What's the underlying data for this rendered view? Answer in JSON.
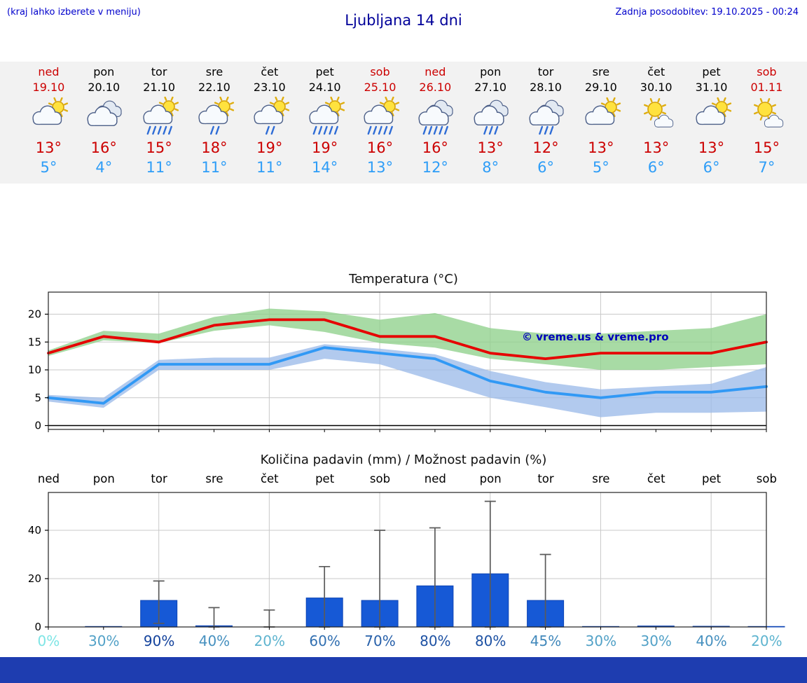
{
  "header": {
    "hint": "(kraj lahko izberete v meniju)",
    "title": "Ljubljana 14 dni",
    "updated": "Zadnja posodobitev: 19.10.2025 - 00:24"
  },
  "watermark": "© vreme.us & vreme.pro",
  "colors": {
    "link_blue": "#0000cc",
    "title_blue": "#000099",
    "weekend_red": "#cc0000",
    "tmax_red": "#cc0000",
    "tmin_blue": "#2e9df7",
    "strip_bg": "#f2f2f2",
    "footer_bg": "#1e3db0"
  },
  "days": [
    {
      "name": "ned",
      "date": "19.10",
      "weekend": true,
      "icon": "partly-cloudy",
      "tmax": "13°",
      "tmin": "5°"
    },
    {
      "name": "pon",
      "date": "20.10",
      "weekend": false,
      "icon": "cloudy",
      "tmax": "16°",
      "tmin": "4°"
    },
    {
      "name": "tor",
      "date": "21.10",
      "weekend": false,
      "icon": "partly-heavy-rain",
      "tmax": "15°",
      "tmin": "11°"
    },
    {
      "name": "sre",
      "date": "22.10",
      "weekend": false,
      "icon": "partly-rain",
      "tmax": "18°",
      "tmin": "11°"
    },
    {
      "name": "čet",
      "date": "23.10",
      "weekend": false,
      "icon": "partly-rain",
      "tmax": "19°",
      "tmin": "11°"
    },
    {
      "name": "pet",
      "date": "24.10",
      "weekend": false,
      "icon": "partly-heavy-rain",
      "tmax": "19°",
      "tmin": "14°"
    },
    {
      "name": "sob",
      "date": "25.10",
      "weekend": true,
      "icon": "partly-heavy-rain",
      "tmax": "16°",
      "tmin": "13°"
    },
    {
      "name": "ned",
      "date": "26.10",
      "weekend": true,
      "icon": "cloudy-heavy-rain",
      "tmax": "16°",
      "tmin": "12°"
    },
    {
      "name": "pon",
      "date": "27.10",
      "weekend": false,
      "icon": "cloudy-rain",
      "tmax": "13°",
      "tmin": "8°"
    },
    {
      "name": "tor",
      "date": "28.10",
      "weekend": false,
      "icon": "cloudy-rain",
      "tmax": "12°",
      "tmin": "6°"
    },
    {
      "name": "sre",
      "date": "29.10",
      "weekend": false,
      "icon": "partly-cloudy",
      "tmax": "13°",
      "tmin": "5°"
    },
    {
      "name": "čet",
      "date": "30.10",
      "weekend": false,
      "icon": "mostly-sunny",
      "tmax": "13°",
      "tmin": "6°"
    },
    {
      "name": "pet",
      "date": "31.10",
      "weekend": false,
      "icon": "partly-cloudy",
      "tmax": "13°",
      "tmin": "6°"
    },
    {
      "name": "sob",
      "date": "01.11",
      "weekend": true,
      "icon": "mostly-sunny",
      "tmax": "15°",
      "tmin": "7°"
    }
  ],
  "chart_data": [
    {
      "type": "line",
      "title": "Temperatura (°C)",
      "x_categories": [
        "ned 19.10",
        "pon 20.10",
        "tor 21.10",
        "sre 22.10",
        "čet 23.10",
        "pet 24.10",
        "sob 25.10",
        "ned 26.10",
        "pon 27.10",
        "tor 28.10",
        "sre 29.10",
        "čet 30.10",
        "pet 31.10",
        "sob 01.11"
      ],
      "yticks": [
        0,
        5,
        10,
        15,
        20
      ],
      "ylim": [
        0,
        24
      ],
      "grid": true,
      "series": [
        {
          "name": "max-temperature",
          "color": "#e60000",
          "values": [
            13,
            16,
            15,
            18,
            19,
            19,
            16,
            16,
            13,
            12,
            13,
            13,
            13,
            15
          ]
        },
        {
          "name": "min-temperature",
          "color": "#3199f5",
          "values": [
            5,
            4,
            11,
            11,
            11,
            14,
            13,
            12,
            8,
            6,
            5,
            6,
            6,
            7
          ]
        }
      ],
      "bands": [
        {
          "name": "max-uncertainty",
          "color": "#8fd18c",
          "upper": [
            13.5,
            17,
            16.5,
            19.5,
            21,
            20.5,
            19,
            20.2,
            17.5,
            16.5,
            16.5,
            17,
            17.5,
            20
          ],
          "lower": [
            12.5,
            15.3,
            14.8,
            17,
            18,
            16.8,
            14.8,
            14,
            12,
            11,
            10,
            10,
            10.5,
            11
          ]
        },
        {
          "name": "min-uncertainty",
          "color": "#9cbbe9",
          "upper": [
            5.5,
            5,
            11.8,
            12.2,
            12.2,
            14.6,
            13.8,
            12.8,
            9.8,
            7.8,
            6.5,
            7,
            7.5,
            10.5
          ],
          "lower": [
            4.3,
            3.2,
            10,
            10,
            10,
            12,
            11,
            8,
            5,
            3.3,
            1.5,
            2.3,
            2.3,
            2.5
          ]
        }
      ]
    },
    {
      "type": "bar",
      "title": "Količina padavin (mm) / Možnost padavin (%)",
      "categories": [
        "ned",
        "pon",
        "tor",
        "sre",
        "čet",
        "pet",
        "sob",
        "ned",
        "pon",
        "tor",
        "sre",
        "čet",
        "pet",
        "sob"
      ],
      "yticks": [
        0,
        20,
        40
      ],
      "ylim": [
        0,
        56
      ],
      "values_mm": [
        0,
        0.2,
        11,
        0.5,
        0,
        12,
        11,
        17,
        22,
        11,
        0.2,
        0.4,
        0.3,
        0.2
      ],
      "whisker_low": [
        null,
        null,
        1.5,
        0,
        0,
        0,
        0,
        0,
        0,
        0,
        null,
        null,
        null,
        null
      ],
      "whisker_high": [
        null,
        null,
        19,
        8,
        7,
        25,
        40,
        41,
        52,
        30,
        null,
        null,
        null,
        null
      ],
      "probability_pct": [
        0,
        30,
        90,
        40,
        20,
        60,
        70,
        80,
        80,
        45,
        30,
        30,
        40,
        20
      ],
      "prob_labels": [
        "0%",
        "30%",
        "90%",
        "40%",
        "20%",
        "60%",
        "70%",
        "80%",
        "80%",
        "45%",
        "30%",
        "30%",
        "40%",
        "20%"
      ],
      "bar_color": "#1659d6"
    }
  ]
}
